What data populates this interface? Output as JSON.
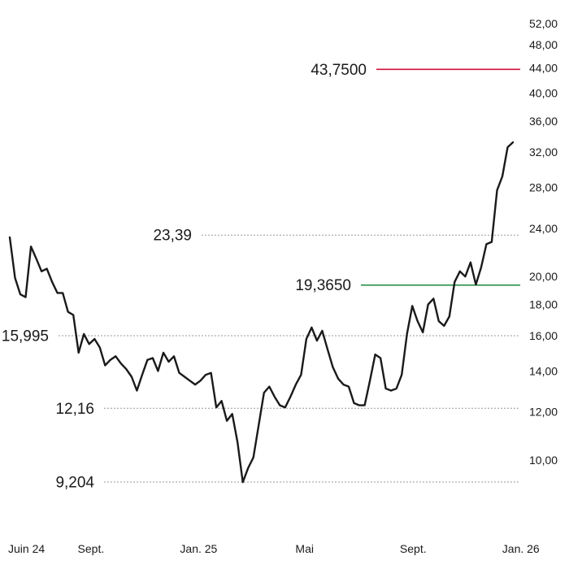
{
  "chart_data": {
    "type": "line",
    "title": "",
    "xlabel": "",
    "ylabel": "",
    "y_scale": "log",
    "ylim": [
      8.2,
      54
    ],
    "grid": false,
    "x_labels": [
      {
        "label": "Juin 24",
        "date": "2024-06-01"
      },
      {
        "label": "Sept.",
        "date": "2024-09-01"
      },
      {
        "label": "Jan. 25",
        "date": "2025-01-01"
      },
      {
        "label": "Mai",
        "date": "2025-05-01"
      },
      {
        "label": "Sept.",
        "date": "2025-09-01"
      },
      {
        "label": "Jan. 26",
        "date": "2026-01-01"
      }
    ],
    "y_ticks": [
      "10,00",
      "12,00",
      "14,00",
      "16,00",
      "18,00",
      "20,00",
      "24,00",
      "28,00",
      "32,00",
      "36,00",
      "40,00",
      "44,00",
      "48,00",
      "52,00"
    ],
    "y_tick_values": [
      10,
      12,
      14,
      16,
      18,
      20,
      24,
      28,
      32,
      36,
      40,
      44,
      48,
      52
    ],
    "levels": [
      {
        "label": "43,7500",
        "value": 43.75,
        "color": "#d0103a",
        "style": "solid"
      },
      {
        "label": "23,39",
        "value": 23.39,
        "color": "#999999",
        "style": "dotted"
      },
      {
        "label": "19,3650",
        "value": 19.365,
        "color": "#1a8a3a",
        "style": "solid"
      },
      {
        "label": "15,995",
        "value": 15.995,
        "color": "#999999",
        "style": "dotted"
      },
      {
        "label": "12,16",
        "value": 12.16,
        "color": "#999999",
        "style": "dotted"
      },
      {
        "label": "9,204",
        "value": 9.204,
        "color": "#999999",
        "style": "dotted"
      }
    ],
    "series": [
      {
        "color": "#1a1a1a",
        "points": [
          [
            "2024-06-01",
            23.2
          ],
          [
            "2024-06-07",
            19.9
          ],
          [
            "2024-06-13",
            18.7
          ],
          [
            "2024-06-19",
            18.5
          ],
          [
            "2024-06-25",
            22.4
          ],
          [
            "2024-07-01",
            21.4
          ],
          [
            "2024-07-07",
            20.4
          ],
          [
            "2024-07-13",
            20.6
          ],
          [
            "2024-07-19",
            19.6
          ],
          [
            "2024-07-25",
            18.8
          ],
          [
            "2024-07-31",
            18.8
          ],
          [
            "2024-08-06",
            17.5
          ],
          [
            "2024-08-12",
            17.3
          ],
          [
            "2024-08-18",
            15.0
          ],
          [
            "2024-08-24",
            16.1
          ],
          [
            "2024-08-30",
            15.5
          ],
          [
            "2024-09-05",
            15.8
          ],
          [
            "2024-09-11",
            15.3
          ],
          [
            "2024-09-17",
            14.3
          ],
          [
            "2024-09-23",
            14.6
          ],
          [
            "2024-09-29",
            14.8
          ],
          [
            "2024-10-05",
            14.4
          ],
          [
            "2024-10-11",
            14.1
          ],
          [
            "2024-10-17",
            13.7
          ],
          [
            "2024-10-23",
            13.0
          ],
          [
            "2024-10-29",
            13.8
          ],
          [
            "2024-11-04",
            14.6
          ],
          [
            "2024-11-10",
            14.7
          ],
          [
            "2024-11-16",
            14.0
          ],
          [
            "2024-11-22",
            15.0
          ],
          [
            "2024-11-28",
            14.5
          ],
          [
            "2024-12-04",
            14.8
          ],
          [
            "2024-12-10",
            13.9
          ],
          [
            "2024-12-16",
            13.7
          ],
          [
            "2024-12-22",
            13.5
          ],
          [
            "2024-12-28",
            13.3
          ],
          [
            "2025-01-03",
            13.5
          ],
          [
            "2025-01-09",
            13.8
          ],
          [
            "2025-01-15",
            13.9
          ],
          [
            "2025-01-21",
            12.2
          ],
          [
            "2025-01-27",
            12.5
          ],
          [
            "2025-02-02",
            11.6
          ],
          [
            "2025-02-08",
            11.9
          ],
          [
            "2025-02-14",
            10.7
          ],
          [
            "2025-02-20",
            9.2
          ],
          [
            "2025-02-26",
            9.7
          ],
          [
            "2025-03-04",
            10.1
          ],
          [
            "2025-03-10",
            11.4
          ],
          [
            "2025-03-16",
            12.9
          ],
          [
            "2025-03-22",
            13.2
          ],
          [
            "2025-03-28",
            12.7
          ],
          [
            "2025-04-03",
            12.3
          ],
          [
            "2025-04-09",
            12.2
          ],
          [
            "2025-04-15",
            12.7
          ],
          [
            "2025-04-21",
            13.3
          ],
          [
            "2025-04-27",
            13.8
          ],
          [
            "2025-05-03",
            15.8
          ],
          [
            "2025-05-09",
            16.5
          ],
          [
            "2025-05-15",
            15.7
          ],
          [
            "2025-05-21",
            16.3
          ],
          [
            "2025-05-27",
            15.2
          ],
          [
            "2025-06-02",
            14.2
          ],
          [
            "2025-06-08",
            13.6
          ],
          [
            "2025-06-14",
            13.3
          ],
          [
            "2025-06-20",
            13.2
          ],
          [
            "2025-06-26",
            12.4
          ],
          [
            "2025-07-02",
            12.3
          ],
          [
            "2025-07-08",
            12.3
          ],
          [
            "2025-07-14",
            13.5
          ],
          [
            "2025-07-20",
            14.9
          ],
          [
            "2025-07-26",
            14.7
          ],
          [
            "2025-08-01",
            13.1
          ],
          [
            "2025-08-07",
            13.0
          ],
          [
            "2025-08-13",
            13.1
          ],
          [
            "2025-08-19",
            13.8
          ],
          [
            "2025-08-25",
            16.1
          ],
          [
            "2025-08-31",
            17.9
          ],
          [
            "2025-09-06",
            16.9
          ],
          [
            "2025-09-12",
            16.2
          ],
          [
            "2025-09-18",
            18.0
          ],
          [
            "2025-09-24",
            18.4
          ],
          [
            "2025-09-30",
            16.9
          ],
          [
            "2025-10-06",
            16.6
          ],
          [
            "2025-10-12",
            17.2
          ],
          [
            "2025-10-18",
            19.6
          ],
          [
            "2025-10-24",
            20.4
          ],
          [
            "2025-10-30",
            20.0
          ],
          [
            "2025-11-05",
            21.1
          ],
          [
            "2025-11-11",
            19.4
          ],
          [
            "2025-11-17",
            20.7
          ],
          [
            "2025-11-23",
            22.6
          ],
          [
            "2025-11-29",
            22.8
          ],
          [
            "2025-12-05",
            27.7
          ],
          [
            "2025-12-11",
            29.2
          ],
          [
            "2025-12-17",
            32.6
          ],
          [
            "2025-12-23",
            33.2
          ]
        ]
      }
    ]
  }
}
